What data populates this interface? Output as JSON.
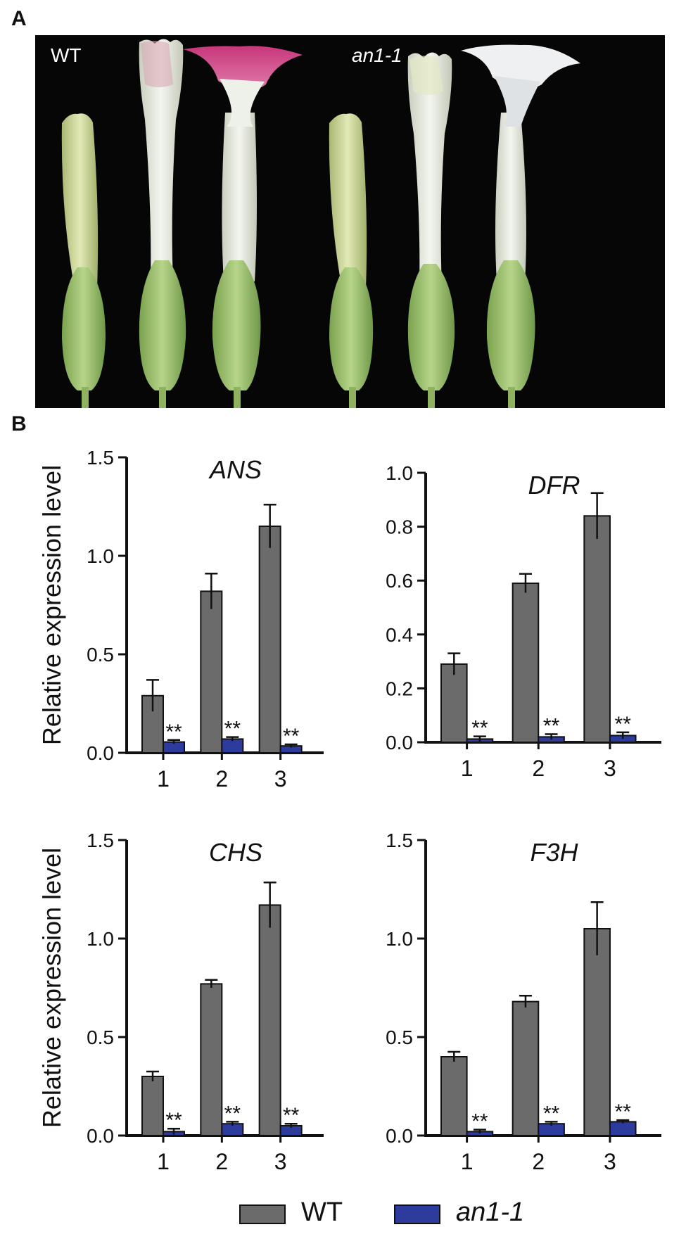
{
  "panels": {
    "a_label": "A",
    "b_label": "B"
  },
  "photo": {
    "label_left": "WT",
    "label_right": "an1-1",
    "colors": {
      "background": "#060606",
      "wt_limb": "#d8548f",
      "mutant_limb": "#eef0f2",
      "calyx": "#9cc26e",
      "tube": "#e7ece0"
    }
  },
  "colors": {
    "wt": "#6b6b6b",
    "mutant": "#2d3c9c",
    "axis": "#111111"
  },
  "legend": {
    "wt": "WT",
    "mutant": "an1-1"
  },
  "chart_data": [
    {
      "type": "bar",
      "title": "ANS",
      "ylabel": "Relative expression level",
      "xlabel": "",
      "categories": [
        "1",
        "2",
        "3"
      ],
      "ylim": [
        0,
        1.5
      ],
      "yticks": [
        "0.0",
        "0.5",
        "1.0",
        "1.5"
      ],
      "series": [
        {
          "name": "WT",
          "values": [
            0.29,
            0.82,
            1.15
          ],
          "errors": [
            0.08,
            0.09,
            0.11
          ]
        },
        {
          "name": "an1-1",
          "values": [
            0.055,
            0.07,
            0.035
          ],
          "errors": [
            0.01,
            0.01,
            0.008
          ]
        }
      ],
      "annotations": [
        "**",
        "**",
        "**"
      ]
    },
    {
      "type": "bar",
      "title": "DFR",
      "ylabel": "",
      "xlabel": "",
      "categories": [
        "1",
        "2",
        "3"
      ],
      "ylim": [
        0,
        1.0
      ],
      "yticks": [
        "0.0",
        "0.2",
        "0.4",
        "0.6",
        "0.8",
        "1.0"
      ],
      "series": [
        {
          "name": "WT",
          "values": [
            0.29,
            0.59,
            0.84
          ],
          "errors": [
            0.04,
            0.035,
            0.085
          ]
        },
        {
          "name": "an1-1",
          "values": [
            0.012,
            0.02,
            0.025
          ],
          "errors": [
            0.01,
            0.01,
            0.012
          ]
        }
      ],
      "annotations": [
        "**",
        "**",
        "**"
      ]
    },
    {
      "type": "bar",
      "title": "CHS",
      "ylabel": "Relative expression level",
      "xlabel": "",
      "categories": [
        "1",
        "2",
        "3"
      ],
      "ylim": [
        0,
        1.5
      ],
      "yticks": [
        "0.0",
        "0.5",
        "1.0",
        "1.5"
      ],
      "series": [
        {
          "name": "WT",
          "values": [
            0.3,
            0.77,
            1.17
          ],
          "errors": [
            0.025,
            0.02,
            0.115
          ]
        },
        {
          "name": "an1-1",
          "values": [
            0.02,
            0.06,
            0.05
          ],
          "errors": [
            0.015,
            0.01,
            0.01
          ]
        }
      ],
      "annotations": [
        "**",
        "**",
        "**"
      ]
    },
    {
      "type": "bar",
      "title": "F3H",
      "ylabel": "",
      "xlabel": "",
      "categories": [
        "1",
        "2",
        "3"
      ],
      "ylim": [
        0,
        1.5
      ],
      "yticks": [
        "0.0",
        "0.5",
        "1.0",
        "1.5"
      ],
      "series": [
        {
          "name": "WT",
          "values": [
            0.4,
            0.68,
            1.05
          ],
          "errors": [
            0.025,
            0.03,
            0.135
          ]
        },
        {
          "name": "an1-1",
          "values": [
            0.02,
            0.06,
            0.07
          ],
          "errors": [
            0.01,
            0.01,
            0.008
          ]
        }
      ],
      "annotations": [
        "**",
        "**",
        "**"
      ]
    }
  ]
}
